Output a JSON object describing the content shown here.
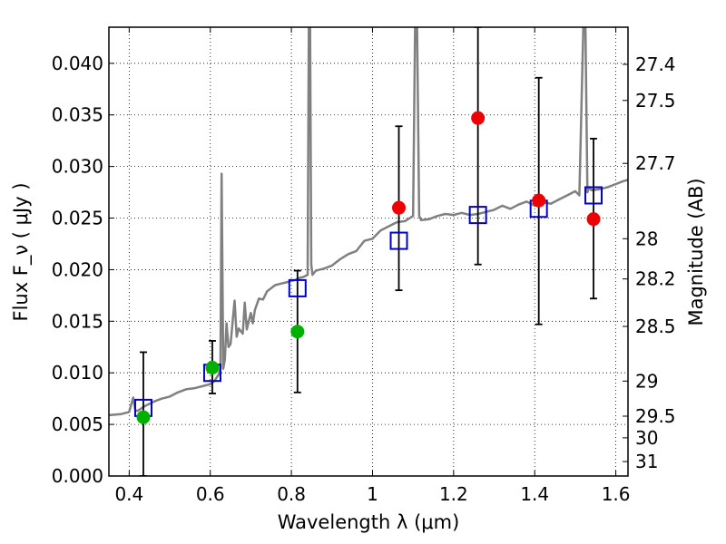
{
  "chart_data": {
    "type": "scatter",
    "xlabel": "Wavelength  λ (μm)",
    "ylabel": "Flux  F_ν  ( μJy )",
    "ylabel_right": "Magnitude (AB)",
    "xlim": [
      0.35,
      1.63
    ],
    "ylim": [
      0.0,
      0.0435
    ],
    "x_ticks": [
      0.4,
      0.6,
      0.8,
      1.0,
      1.2,
      1.4,
      1.6
    ],
    "x_tick_labels": [
      "0.4",
      "0.6",
      "0.8",
      "1",
      "1.2",
      "1.4",
      "1.6"
    ],
    "y_ticks": [
      0.0,
      0.005,
      0.01,
      0.015,
      0.02,
      0.025,
      0.03,
      0.035,
      0.04
    ],
    "y_tick_labels": [
      "0.000",
      "0.005",
      "0.010",
      "0.015",
      "0.020",
      "0.025",
      "0.030",
      "0.035",
      "0.040"
    ],
    "magnitude_ticks": [
      {
        "label": "27.4",
        "flux": 0.0399
      },
      {
        "label": "27.5",
        "flux": 0.0364
      },
      {
        "label": "27.7",
        "flux": 0.0303
      },
      {
        "label": "28",
        "flux": 0.023
      },
      {
        "label": "28.2",
        "flux": 0.0191
      },
      {
        "label": "28.5",
        "flux": 0.0145
      },
      {
        "label": "29",
        "flux": 0.0092
      },
      {
        "label": "29.5",
        "flux": 0.0058
      },
      {
        "label": "30",
        "flux": 0.0037
      },
      {
        "label": "31",
        "flux": 0.0014
      }
    ],
    "grid": true,
    "series": [
      {
        "kind": "line",
        "color": "#808080",
        "x": [
          0.35,
          0.38,
          0.4,
          0.41,
          0.415,
          0.42,
          0.44,
          0.46,
          0.48,
          0.5,
          0.52,
          0.54,
          0.56,
          0.58,
          0.6,
          0.61,
          0.62,
          0.625,
          0.628,
          0.632,
          0.636,
          0.64,
          0.645,
          0.65,
          0.66,
          0.665,
          0.67,
          0.68,
          0.685,
          0.69,
          0.7,
          0.705,
          0.71,
          0.72,
          0.73,
          0.74,
          0.75,
          0.76,
          0.77,
          0.78,
          0.79,
          0.8,
          0.81,
          0.82,
          0.83,
          0.84,
          0.843,
          0.846,
          0.849,
          0.852,
          0.86,
          0.88,
          0.9,
          0.92,
          0.94,
          0.96,
          0.98,
          1.0,
          1.02,
          1.04,
          1.06,
          1.08,
          1.1,
          1.105,
          1.11,
          1.115,
          1.12,
          1.14,
          1.16,
          1.18,
          1.2,
          1.22,
          1.24,
          1.26,
          1.28,
          1.3,
          1.32,
          1.34,
          1.36,
          1.38,
          1.4,
          1.42,
          1.44,
          1.46,
          1.48,
          1.5,
          1.51,
          1.52,
          1.525,
          1.53,
          1.535,
          1.54,
          1.56,
          1.58,
          1.6,
          1.62,
          1.63
        ],
        "y": [
          0.0059,
          0.006,
          0.0062,
          0.0076,
          0.0064,
          0.0063,
          0.0068,
          0.0072,
          0.0075,
          0.0077,
          0.0081,
          0.0084,
          0.0085,
          0.0087,
          0.0089,
          0.0092,
          0.0098,
          0.0104,
          0.0293,
          0.0104,
          0.0113,
          0.0148,
          0.0125,
          0.0128,
          0.017,
          0.0135,
          0.0143,
          0.0138,
          0.0168,
          0.0142,
          0.0158,
          0.0148,
          0.0161,
          0.0172,
          0.0171,
          0.0179,
          0.0182,
          0.0185,
          0.0186,
          0.0187,
          0.0188,
          0.0189,
          0.019,
          0.0192,
          0.0193,
          0.0195,
          0.0435,
          0.0435,
          0.0205,
          0.0195,
          0.0199,
          0.0201,
          0.0204,
          0.021,
          0.0215,
          0.0218,
          0.0228,
          0.023,
          0.0238,
          0.0242,
          0.0246,
          0.0247,
          0.0252,
          0.0435,
          0.0435,
          0.0252,
          0.0248,
          0.0249,
          0.0252,
          0.0254,
          0.0253,
          0.0255,
          0.0253,
          0.0254,
          0.0256,
          0.0258,
          0.0262,
          0.0259,
          0.0263,
          0.0266,
          0.0262,
          0.0265,
          0.0264,
          0.0268,
          0.0272,
          0.0276,
          0.0272,
          0.0435,
          0.0435,
          0.0275,
          0.028,
          0.0277,
          0.0278,
          0.028,
          0.0283,
          0.0286,
          0.0287
        ]
      },
      {
        "kind": "model-points",
        "marker": "open-square",
        "color": "#0000cc",
        "x": [
          0.435,
          0.605,
          0.815,
          1.065,
          1.26,
          1.41,
          1.545
        ],
        "y": [
          0.0066,
          0.01,
          0.0182,
          0.0228,
          0.0253,
          0.0259,
          0.0272
        ]
      },
      {
        "kind": "observed",
        "marker": "filled-circle",
        "x": [
          0.435,
          0.605,
          0.815,
          1.065,
          1.26,
          1.41,
          1.545
        ],
        "y": [
          0.0057,
          0.0105,
          0.014,
          0.026,
          0.0347,
          0.0267,
          0.0249
        ],
        "yerr_low": [
          0.0,
          0.008,
          0.0081,
          0.018,
          0.0205,
          0.0147,
          0.0172
        ],
        "yerr_high": [
          0.012,
          0.0131,
          0.0199,
          0.0339,
          0.0435,
          0.0386,
          0.0327
        ],
        "colors": [
          "#00b000",
          "#00b000",
          "#00b000",
          "#ee0000",
          "#ee0000",
          "#ee0000",
          "#ee0000"
        ]
      }
    ]
  }
}
